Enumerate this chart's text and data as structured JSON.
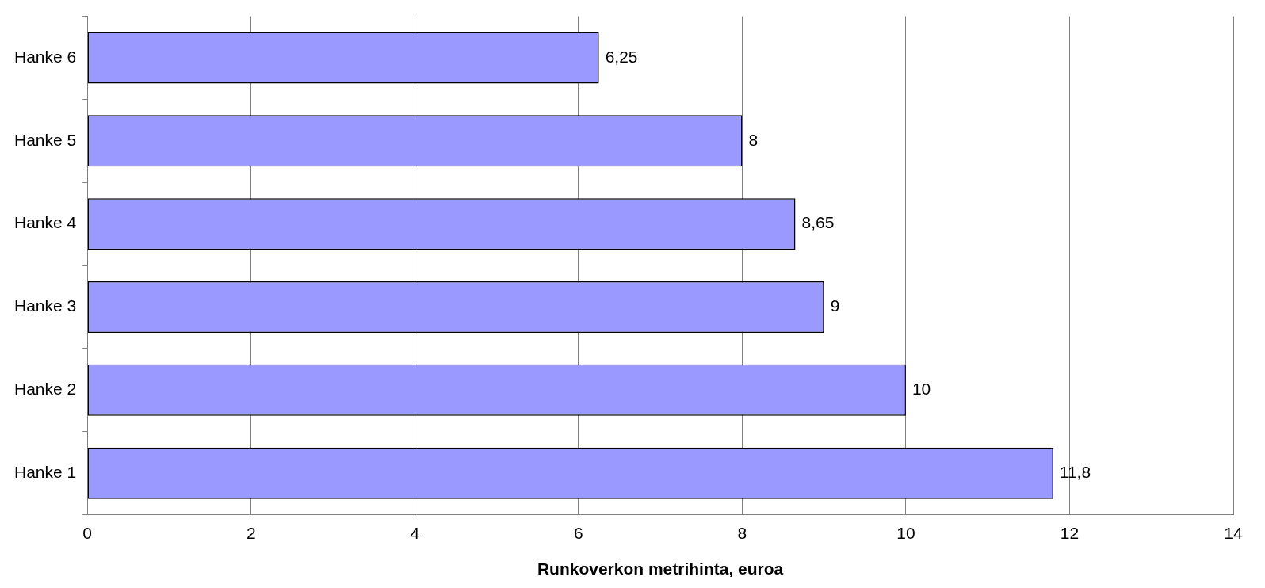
{
  "chart_data": {
    "type": "bar",
    "orientation": "horizontal",
    "xlabel": "Runkoverkon metrihinta, euroa",
    "categories": [
      "Hanke 6",
      "Hanke 5",
      "Hanke 4",
      "Hanke 3",
      "Hanke 2",
      "Hanke 1"
    ],
    "values": [
      6.25,
      8,
      8.65,
      9,
      10,
      11.8
    ],
    "value_labels": [
      "6,25",
      "8",
      "8,65",
      "9",
      "10",
      "11,8"
    ],
    "color": "#9999ff",
    "xlim": [
      0,
      14
    ],
    "xticks": [
      0,
      2,
      4,
      6,
      8,
      10,
      12,
      14
    ],
    "grid": "x",
    "legend": false
  }
}
